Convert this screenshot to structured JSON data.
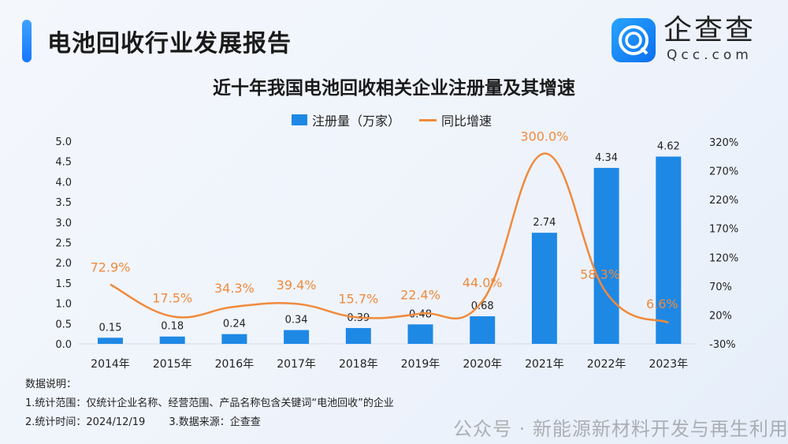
{
  "header": {
    "title": "电池回收行业发展报告",
    "logo_cn": "企查查",
    "logo_en": "Qcc.com"
  },
  "chart_data": {
    "type": "bar+line",
    "title": "近十年我国电池回收相关企业注册量及其增速",
    "categories": [
      "2014年",
      "2015年",
      "2016年",
      "2017年",
      "2018年",
      "2019年",
      "2020年",
      "2021年",
      "2022年",
      "2023年"
    ],
    "series": [
      {
        "name": "注册量（万家）",
        "type": "bar",
        "axis": "left",
        "color": "#1e88e5",
        "values": [
          0.15,
          0.18,
          0.24,
          0.34,
          0.39,
          0.48,
          0.68,
          2.74,
          4.34,
          4.62
        ],
        "labels": [
          "0.15",
          "0.18",
          "0.24",
          "0.34",
          "0.39",
          "0.48",
          "0.68",
          "2.74",
          "4.34",
          "4.62"
        ]
      },
      {
        "name": "同比增速",
        "type": "line",
        "axis": "right",
        "color": "#f08a3c",
        "values": [
          72.9,
          17.5,
          34.3,
          39.4,
          15.7,
          22.4,
          44.0,
          300.0,
          58.3,
          6.6
        ],
        "labels": [
          "72.9%",
          "17.5%",
          "34.3%",
          "39.4%",
          "15.7%",
          "22.4%",
          "44.0%",
          "300.0%",
          "58.3%",
          "6.6%"
        ]
      }
    ],
    "left_axis": {
      "ylim": [
        0,
        5
      ],
      "ticks": [
        "0.0",
        "0.5",
        "1.0",
        "1.5",
        "2.0",
        "2.5",
        "3.0",
        "3.5",
        "4.0",
        "4.5",
        "5.0"
      ]
    },
    "right_axis": {
      "ylim": [
        -30,
        320
      ],
      "ticks": [
        "-30%",
        "20%",
        "70%",
        "120%",
        "170%",
        "220%",
        "270%",
        "320%"
      ]
    },
    "legend": "top-center",
    "grid": false
  },
  "notes": {
    "heading": "数据说明：",
    "line1": "1.统计范围：仅统计企业名称、经营范围、产品名称包含关键词“电池回收”的企业",
    "line2a": "2.统计时间：2024/12/19",
    "line2b": "3.数据来源：企查查"
  },
  "watermark": "公众号 · 新能源新材料开发与再生利用"
}
